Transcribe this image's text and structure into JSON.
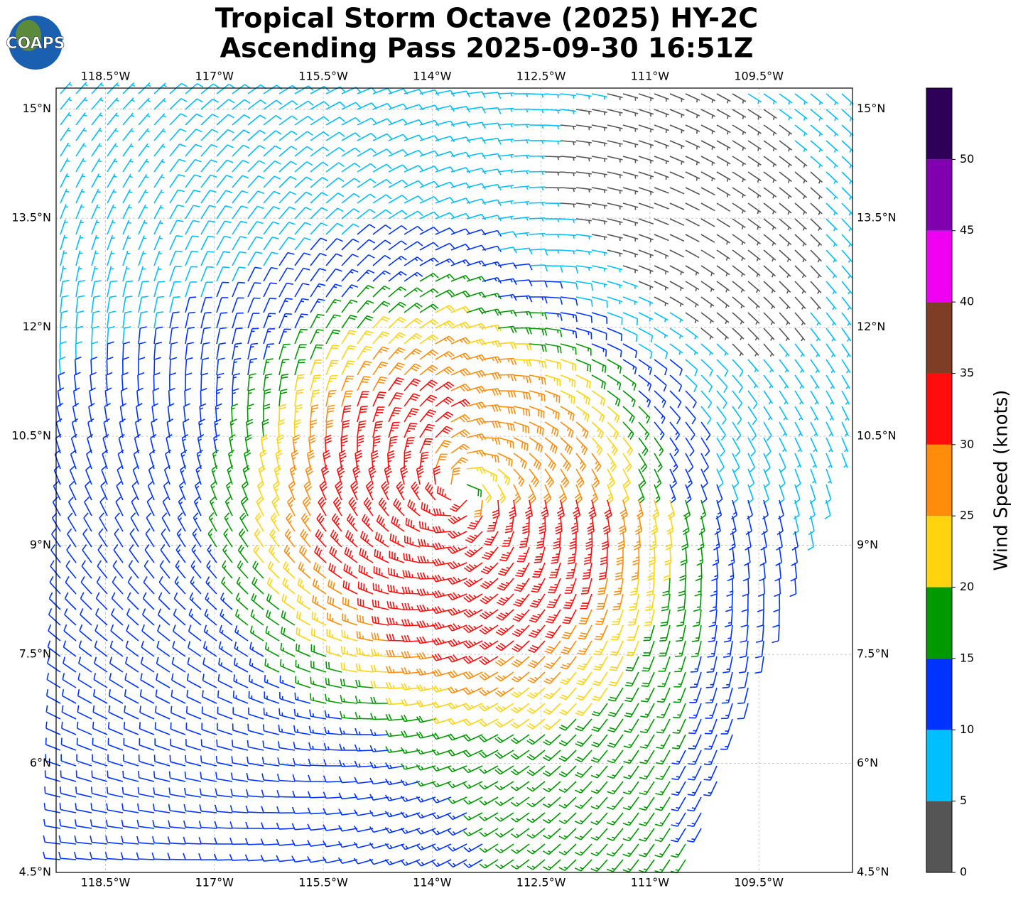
{
  "logo": "COAPS",
  "chart_data": {
    "type": "map",
    "title": "Tropical Storm Octave (2025) HY-2C",
    "subtitle": "Ascending Pass 2025-09-30 16:51Z",
    "xlim": [
      -119.18,
      -108.21
    ],
    "ylim": [
      4.5,
      15.29
    ],
    "xticks": [
      {
        "value": -118.5,
        "label": "118.5°W"
      },
      {
        "value": -117,
        "label": "117°W"
      },
      {
        "value": -115.5,
        "label": "115.5°W"
      },
      {
        "value": -114,
        "label": "114°W"
      },
      {
        "value": -112.5,
        "label": "112.5°W"
      },
      {
        "value": -111,
        "label": "111°W"
      },
      {
        "value": -109.5,
        "label": "109.5°W"
      }
    ],
    "yticks": [
      {
        "value": 4.5,
        "label": "4.5°N"
      },
      {
        "value": 6,
        "label": "6°N"
      },
      {
        "value": 7.5,
        "label": "7.5°N"
      },
      {
        "value": 9,
        "label": "9°N"
      },
      {
        "value": 10.5,
        "label": "10.5°N"
      },
      {
        "value": 12,
        "label": "12°N"
      },
      {
        "value": 13.5,
        "label": "13.5°N"
      },
      {
        "value": 15,
        "label": "15°N"
      }
    ],
    "grid": true,
    "colorbar": {
      "label": "Wind Speed (knots)",
      "lim": [
        0,
        55
      ],
      "levels": [
        0,
        5,
        10,
        15,
        20,
        25,
        30,
        35,
        40,
        45,
        50,
        55
      ],
      "colors": [
        "#555555",
        "#00bfff",
        "#0033ff",
        "#009900",
        "#ffd30d",
        "#ff8c0a",
        "#ff0d0d",
        "#803d25",
        "#f000f0",
        "#8000b0",
        "#2e0057"
      ],
      "ticks": [
        0,
        5,
        10,
        15,
        20,
        25,
        30,
        35,
        40,
        45,
        50
      ]
    }
  }
}
